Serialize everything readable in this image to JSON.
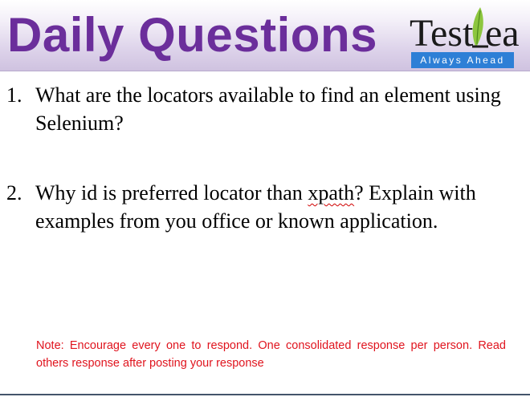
{
  "header": {
    "title": "Daily Questions",
    "logo": {
      "wordmark_left": "Test",
      "wordmark_right": "eaf",
      "tagline": "Always Ahead"
    }
  },
  "questions": [
    {
      "number": "1.",
      "text": "What are the locators available to find an element using Selenium?"
    },
    {
      "number": "2.",
      "text_before": "Why id is preferred locator than ",
      "flagged_word": "xpath",
      "text_after": "? Explain with examples from you office or known application."
    }
  ],
  "note": "Note: Encourage every one to respond. One consolidated response per person. Read others response after posting your response",
  "colors": {
    "title": "#6b2e9b",
    "note": "#e0141e",
    "logo_bar": "#2d7fd6",
    "logo_leaf": "#8dc63f"
  }
}
